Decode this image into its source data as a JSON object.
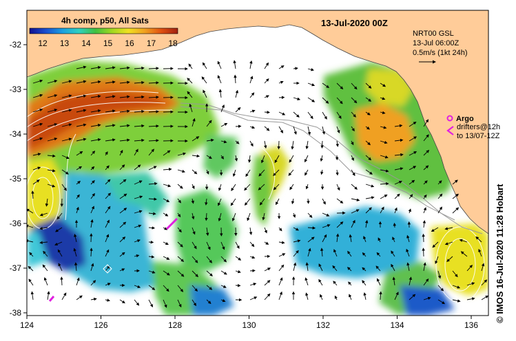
{
  "map": {
    "title": "13-Jul-2020 00Z",
    "colorbar": {
      "label": "4h comp, p50, All Sats",
      "ticks": [
        "12",
        "13",
        "14",
        "15",
        "16",
        "17",
        "18"
      ],
      "stops": [
        "#101090",
        "#1a4fd0",
        "#1aa0e0",
        "#30d0c0",
        "#40c040",
        "#a0d820",
        "#f0e020",
        "#f0a020",
        "#e05010",
        "#a02010"
      ]
    },
    "x_ticks": [
      "124",
      "126",
      "128",
      "130",
      "132",
      "134",
      "136"
    ],
    "y_ticks": [
      "-32",
      "-33",
      "-34",
      "-35",
      "-36",
      "-37",
      "-38"
    ],
    "current_legend": {
      "line1": "NRT00 GSL",
      "line2": "13-Jul 06:00Z",
      "line3": "0.5m/s (1kt 24h)"
    },
    "argo": {
      "label": "Argo",
      "color": "#e020e0"
    },
    "drifters": {
      "line1": "drifters@12h",
      "line2": "to 13/07-12Z",
      "color": "#e020e0"
    },
    "credit": "© IMOS 16-Jul-2020 11:28 Hobart",
    "colors": {
      "land": "#ffcc99",
      "frame": "#000000",
      "missing": "#ffffff"
    }
  }
}
